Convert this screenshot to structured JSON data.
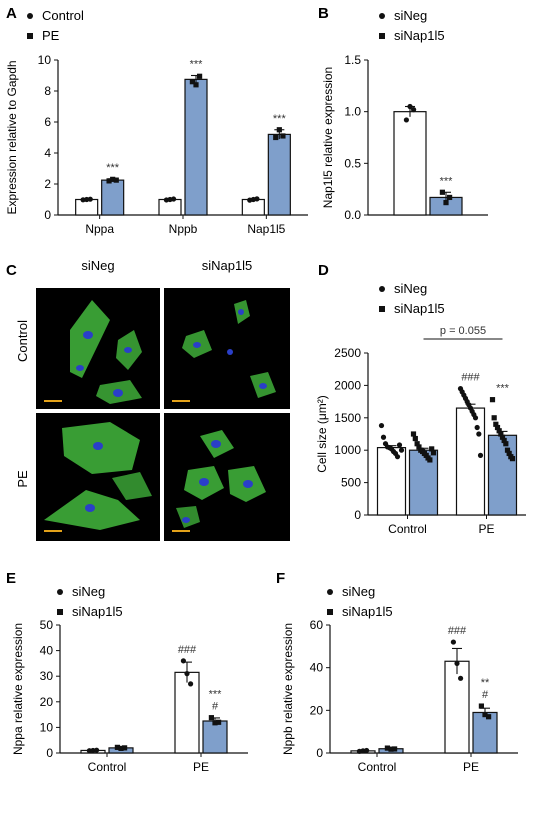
{
  "panels": {
    "A": "A",
    "B": "B",
    "C": "C",
    "D": "D",
    "E": "E",
    "F": "F"
  },
  "colors": {
    "control_fill": "#ffffff",
    "treat_fill": "#7f9fcb",
    "edge": "#111111",
    "scale_bar": "#e3a21a",
    "cell_green": "#3fae3a",
    "nucleus_blue": "#2a3fc8"
  },
  "micrographs": {
    "col_labels": [
      "siNeg",
      "siNap1l5"
    ],
    "row_labels": [
      "Control",
      "PE"
    ]
  },
  "chart_data": [
    {
      "panel": "A",
      "type": "bar",
      "categories": [
        "Nppa",
        "Nppb",
        "Nap1l5"
      ],
      "series": [
        {
          "name": "Control",
          "values": [
            1.0,
            1.0,
            1.0
          ],
          "errors": [
            0.05,
            0.06,
            0.06
          ],
          "points": [
            [
              0.98,
              1.0,
              1.02
            ],
            [
              0.97,
              1.0,
              1.03
            ],
            [
              0.96,
              1.0,
              1.04
            ]
          ]
        },
        {
          "name": "PE",
          "values": [
            2.25,
            8.75,
            5.2
          ],
          "errors": [
            0.08,
            0.25,
            0.3
          ],
          "points": [
            [
              2.2,
              2.3,
              2.25
            ],
            [
              8.6,
              8.4,
              8.95
            ],
            [
              5.0,
              5.5,
              5.1
            ]
          ]
        }
      ],
      "ylabel": "Expression relative to Gapdh",
      "ylim": [
        0,
        10
      ],
      "yticks": [
        0,
        2,
        4,
        6,
        8,
        10
      ],
      "annotations": [
        {
          "category": 0,
          "series": 1,
          "text": "***"
        },
        {
          "category": 1,
          "series": 1,
          "text": "***"
        },
        {
          "category": 2,
          "series": 1,
          "text": "***"
        }
      ],
      "legend": "top-left"
    },
    {
      "panel": "B",
      "type": "bar",
      "categories": [
        ""
      ],
      "series": [
        {
          "name": "siNeg",
          "values": [
            1.0
          ],
          "errors": [
            0.05
          ],
          "points": [
            [
              0.92,
              1.05,
              1.02
            ]
          ]
        },
        {
          "name": "siNap1l5",
          "values": [
            0.17
          ],
          "errors": [
            0.05
          ],
          "points": [
            [
              0.22,
              0.12,
              0.17
            ]
          ]
        }
      ],
      "ylabel": "Nap1l5 relative expression",
      "ylim": [
        0,
        1.5
      ],
      "yticks": [
        "0.0",
        "0.5",
        "1.0",
        "1.5"
      ],
      "annotations": [
        {
          "category": 0,
          "series": 1,
          "text": "***"
        }
      ],
      "legend": "top"
    },
    {
      "panel": "D",
      "type": "bar",
      "categories": [
        "Control",
        "PE"
      ],
      "series": [
        {
          "name": "siNeg",
          "values": [
            1040,
            1650
          ],
          "errors": [
            30,
            60
          ],
          "points": [
            [
              1380,
              1200,
              1100,
              1050,
              1040,
              1020,
              980,
              950,
              900,
              1080,
              1000
            ],
            [
              1950,
              1900,
              1850,
              1800,
              1750,
              1700,
              1650,
              1600,
              1550,
              1500,
              1350,
              1250,
              920
            ]
          ]
        },
        {
          "name": "siNap1l5",
          "values": [
            1000,
            1230
          ],
          "errors": [
            30,
            60
          ],
          "points": [
            [
              1250,
              1180,
              1100,
              1050,
              1000,
              980,
              950,
              920,
              880,
              850,
              1020,
              960
            ],
            [
              1780,
              1500,
              1400,
              1350,
              1300,
              1250,
              1200,
              1150,
              1100,
              1000,
              950,
              900,
              870
            ]
          ]
        }
      ],
      "ylabel": "Cell size (μm²)",
      "ylim": [
        0,
        2500
      ],
      "yticks": [
        0,
        500,
        1000,
        1500,
        2000,
        2500
      ],
      "annotations": [
        {
          "category": 1,
          "series": 0,
          "text": "###"
        },
        {
          "category": 1,
          "series": 1,
          "text": "***"
        }
      ],
      "bracket": {
        "text": "p = 0.055"
      },
      "legend": "top"
    },
    {
      "panel": "E",
      "type": "bar",
      "categories": [
        "Control",
        "PE"
      ],
      "series": [
        {
          "name": "siNeg",
          "values": [
            1.0,
            31.5
          ],
          "errors": [
            0.1,
            4.0
          ],
          "points": [
            [
              0.9,
              1.0,
              1.1
            ],
            [
              36,
              31,
              27
            ]
          ]
        },
        {
          "name": "siNap1l5",
          "values": [
            2.0,
            12.5
          ],
          "errors": [
            0.2,
            1.2
          ],
          "points": [
            [
              2.2,
              1.8,
              2.0
            ],
            [
              13.8,
              11.8,
              12.0
            ]
          ]
        }
      ],
      "ylabel": "Nppa relative expression",
      "ylim": [
        0,
        50
      ],
      "yticks": [
        0,
        10,
        20,
        30,
        40,
        50
      ],
      "annotations": [
        {
          "category": 1,
          "series": 0,
          "text": "###"
        },
        {
          "category": 1,
          "series": 1,
          "text": "#"
        },
        {
          "category": 1,
          "series": 1,
          "text": "***"
        }
      ],
      "legend": "top-left"
    },
    {
      "panel": "F",
      "type": "bar",
      "categories": [
        "Control",
        "PE"
      ],
      "series": [
        {
          "name": "siNeg",
          "values": [
            1.0,
            43
          ],
          "errors": [
            0.2,
            6
          ],
          "points": [
            [
              0.8,
              1.0,
              1.2
            ],
            [
              52,
              42,
              35
            ]
          ]
        },
        {
          "name": "siNap1l5",
          "values": [
            2.0,
            19
          ],
          "errors": [
            0.3,
            2
          ],
          "points": [
            [
              2.3,
              1.8,
              1.9
            ],
            [
              22,
              18,
              17
            ]
          ]
        }
      ],
      "ylabel": "Nppb relative expression",
      "ylim": [
        0,
        60
      ],
      "yticks": [
        0,
        20,
        40,
        60
      ],
      "annotations": [
        {
          "category": 1,
          "series": 0,
          "text": "###"
        },
        {
          "category": 1,
          "series": 1,
          "text": "#"
        },
        {
          "category": 1,
          "series": 1,
          "text": "**"
        }
      ],
      "legend": "top-left"
    }
  ]
}
